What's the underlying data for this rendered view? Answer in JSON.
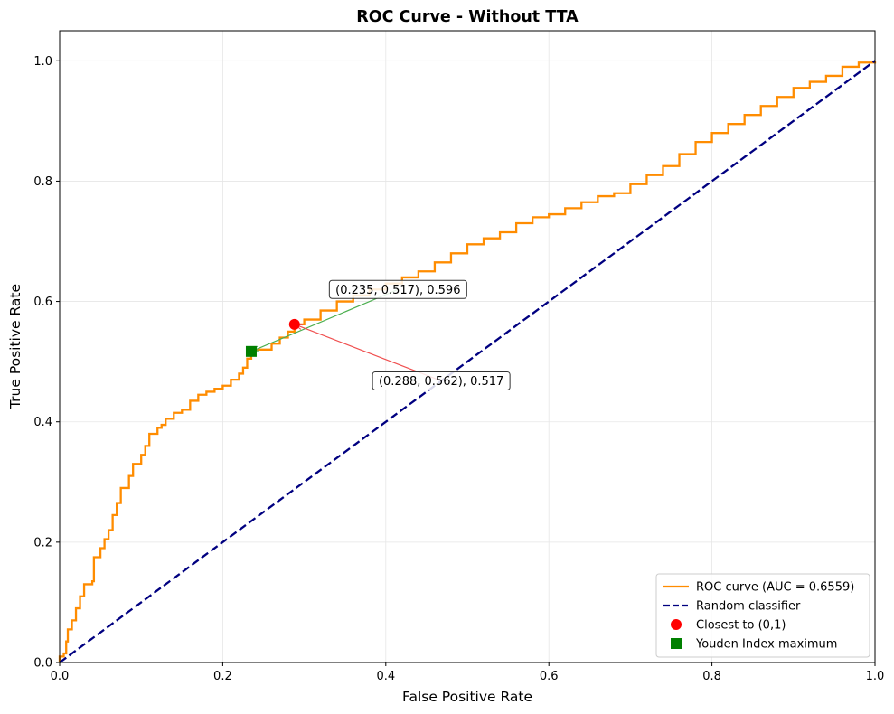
{
  "chart_data": {
    "type": "line",
    "title": "ROC Curve - Without TTA",
    "xlabel": "False Positive Rate",
    "ylabel": "True Positive Rate",
    "xlim": [
      0,
      1
    ],
    "ylim": [
      0,
      1.05
    ],
    "xticks": [
      "0.0",
      "0.2",
      "0.4",
      "0.6",
      "0.8",
      "1.0"
    ],
    "yticks": [
      "0.0",
      "0.2",
      "0.4",
      "0.6",
      "0.8",
      "1.0"
    ],
    "grid": true,
    "legend_position": "lower-right",
    "series": [
      {
        "name": "ROC curve (AUC = 0.6559)",
        "style": "solid",
        "color": "#ff8c00",
        "x": [
          0.0,
          0.0,
          0.005,
          0.008,
          0.01,
          0.015,
          0.02,
          0.025,
          0.03,
          0.04,
          0.042,
          0.05,
          0.055,
          0.06,
          0.065,
          0.07,
          0.075,
          0.085,
          0.09,
          0.1,
          0.105,
          0.11,
          0.12,
          0.125,
          0.13,
          0.14,
          0.15,
          0.16,
          0.17,
          0.18,
          0.19,
          0.2,
          0.21,
          0.22,
          0.225,
          0.23,
          0.235,
          0.24,
          0.26,
          0.27,
          0.28,
          0.288,
          0.3,
          0.32,
          0.34,
          0.36,
          0.38,
          0.4,
          0.42,
          0.44,
          0.46,
          0.48,
          0.5,
          0.52,
          0.54,
          0.56,
          0.58,
          0.6,
          0.62,
          0.64,
          0.66,
          0.68,
          0.7,
          0.72,
          0.74,
          0.76,
          0.78,
          0.8,
          0.82,
          0.84,
          0.86,
          0.88,
          0.9,
          0.92,
          0.94,
          0.96,
          0.98,
          1.0
        ],
        "y": [
          0.0,
          0.01,
          0.015,
          0.035,
          0.055,
          0.07,
          0.09,
          0.11,
          0.13,
          0.135,
          0.175,
          0.19,
          0.205,
          0.22,
          0.245,
          0.265,
          0.29,
          0.31,
          0.33,
          0.345,
          0.36,
          0.38,
          0.39,
          0.395,
          0.405,
          0.415,
          0.42,
          0.435,
          0.445,
          0.45,
          0.455,
          0.46,
          0.47,
          0.48,
          0.49,
          0.505,
          0.517,
          0.52,
          0.53,
          0.54,
          0.55,
          0.562,
          0.57,
          0.585,
          0.6,
          0.61,
          0.62,
          0.63,
          0.64,
          0.65,
          0.665,
          0.68,
          0.695,
          0.705,
          0.715,
          0.73,
          0.74,
          0.745,
          0.755,
          0.765,
          0.775,
          0.78,
          0.795,
          0.81,
          0.825,
          0.845,
          0.865,
          0.88,
          0.895,
          0.91,
          0.925,
          0.94,
          0.955,
          0.965,
          0.975,
          0.99,
          0.997,
          1.0
        ]
      },
      {
        "name": "Random classifier",
        "style": "dashed",
        "color": "#000080",
        "x": [
          0,
          1
        ],
        "y": [
          0,
          1
        ]
      }
    ],
    "points": [
      {
        "name": "Closest to (0,1)",
        "marker": "circle",
        "color": "#ff0000",
        "x": 0.288,
        "y": 0.562
      },
      {
        "name": "Youden Index maximum",
        "marker": "square",
        "color": "#008000",
        "x": 0.235,
        "y": 0.517
      }
    ],
    "annotations": [
      {
        "text": "(0.235, 0.517), 0.596",
        "x": 0.235,
        "y": 0.517,
        "text_x": 0.415,
        "text_y": 0.62,
        "arrow_color": "#4caf50"
      },
      {
        "text": "(0.288, 0.562), 0.517",
        "x": 0.288,
        "y": 0.562,
        "text_x": 0.468,
        "text_y": 0.468,
        "arrow_color": "#f05050"
      }
    ]
  }
}
